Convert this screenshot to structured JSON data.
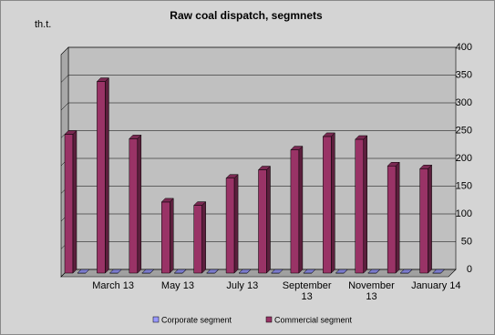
{
  "chart_data": {
    "type": "bar3d",
    "title": "Raw coal dispatch, segmnets",
    "y_label": "th.t.",
    "categories": [
      null,
      "March 13",
      null,
      "May 13",
      null,
      "July 13",
      null,
      "September 13",
      null,
      "November 13",
      null,
      "January 14"
    ],
    "series": [
      {
        "name": "Corporate segment",
        "color": "#9999ff",
        "values": [
          0,
          0,
          0,
          0,
          0,
          0,
          0,
          0,
          0,
          0,
          0,
          0
        ]
      },
      {
        "name": "Commercial segment",
        "color": "#993366",
        "values": [
          250,
          345,
          242,
          128,
          122,
          171,
          186,
          222,
          246,
          241,
          193,
          188
        ]
      }
    ],
    "ylim": [
      0,
      400
    ],
    "yticks": [
      0,
      50,
      100,
      150,
      200,
      250,
      300,
      350,
      400
    ],
    "grid": true
  }
}
